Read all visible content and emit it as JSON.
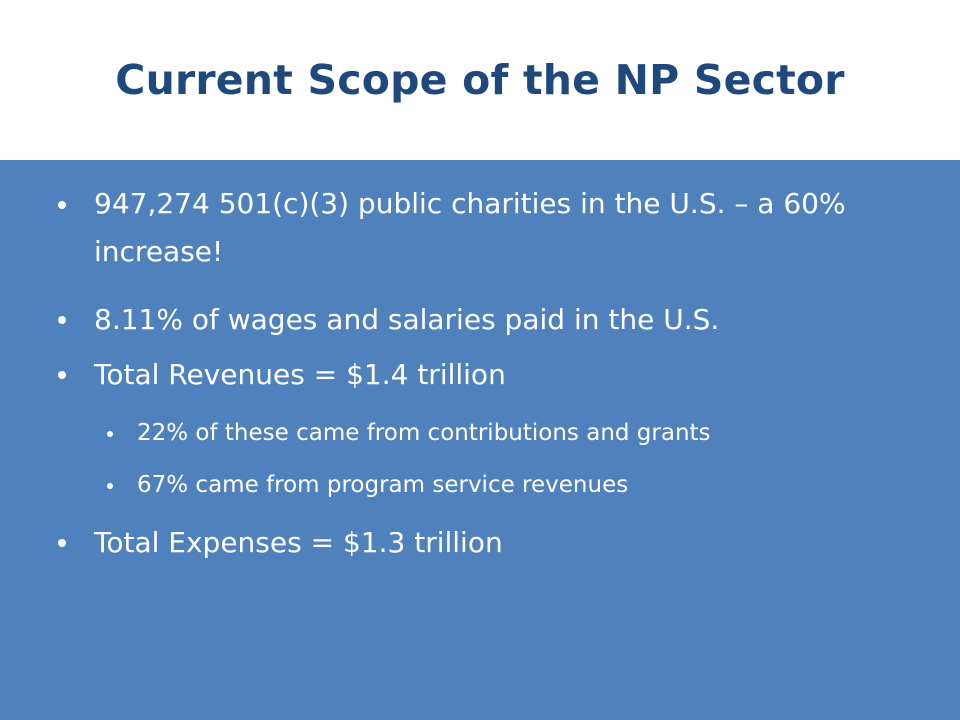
{
  "slide": {
    "title": "Current Scope of the NP Sector",
    "bullets": [
      {
        "text": "947,274 501(c)(3) public charities in the U.S. – a 60% increase!",
        "level": 1
      },
      {
        "text": "8.11% of wages and salaries paid in the U.S.",
        "level": 1
      },
      {
        "text": "Total Revenues = $1.4 trillion",
        "level": 1
      },
      {
        "text": "22% of these came from contributions and grants",
        "level": 2
      },
      {
        "text": "67% came from program service revenues",
        "level": 2
      },
      {
        "text": "Total Expenses = $1.3 trillion",
        "level": 1
      }
    ]
  },
  "colors": {
    "title": "#1f497d",
    "panel": "#4f81bd",
    "text": "#ffffff"
  }
}
